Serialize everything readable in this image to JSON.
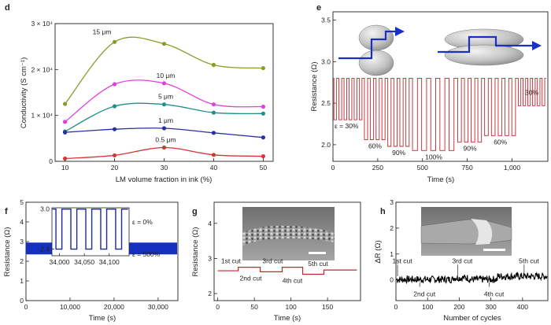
{
  "colors": {
    "axis": "#222222",
    "red_signal": "#c0272d",
    "blue_fill": "#1530c0",
    "strain_arrow": "#1a2fc8",
    "ellipsoid": "#b8b8b8",
    "sem_gray": "#8a8a8a"
  },
  "chart_data": [
    {
      "panel": "d",
      "type": "line",
      "xlabel": "LM volume fraction in ink (%)",
      "ylabel": "Conductivity (S cm⁻¹)",
      "xlim": [
        10,
        50
      ],
      "ylim": [
        0,
        30000
      ],
      "x": [
        10,
        20,
        30,
        40,
        50
      ],
      "xticks": [
        "10",
        "20",
        "30",
        "40",
        "50"
      ],
      "yticks": [
        {
          "value": 0,
          "label": "0"
        },
        {
          "value": 10000,
          "label": "1 × 10⁴"
        },
        {
          "value": 20000,
          "label": "2 × 10⁴"
        },
        {
          "value": 30000,
          "label": "3 × 10⁴"
        }
      ],
      "series": [
        {
          "name": "15 μm",
          "color": "#8c9a2a",
          "values": [
            12500,
            26000,
            25600,
            21000,
            20300
          ]
        },
        {
          "name": "10 μm",
          "color": "#e13ee0",
          "values": [
            8600,
            16800,
            17000,
            12400,
            11900
          ]
        },
        {
          "name": "5 μm",
          "color": "#1f8f8a",
          "values": [
            6500,
            12000,
            12400,
            10600,
            10400
          ]
        },
        {
          "name": "1 μm",
          "color": "#27319e",
          "values": [
            6300,
            7000,
            7200,
            6200,
            5200
          ]
        },
        {
          "name": "0.5 μm",
          "color": "#d43535",
          "values": [
            600,
            1300,
            3000,
            1400,
            1100
          ]
        }
      ]
    },
    {
      "panel": "e",
      "type": "line",
      "xlabel": "Time (s)",
      "ylabel": "Resistance (Ω)",
      "xlim": [
        0,
        1200
      ],
      "ylim": [
        1.8,
        3.6
      ],
      "xticks": [
        "0",
        "250",
        "500",
        "750",
        "1,000"
      ],
      "yticks": [
        "2.0",
        "2.5",
        "3.0",
        "3.5"
      ],
      "baseline": 2.8,
      "segments": [
        {
          "label": "ε = 30%",
          "start": 0,
          "end": 170,
          "cycles": 6,
          "low": 2.3
        },
        {
          "label": "60%",
          "start": 170,
          "end": 300,
          "cycles": 4,
          "low": 2.06
        },
        {
          "label": "90%",
          "start": 300,
          "end": 435,
          "cycles": 4,
          "low": 1.98
        },
        {
          "label": "100%",
          "start": 435,
          "end": 690,
          "cycles": 5,
          "low": 1.93
        },
        {
          "label": "90%",
          "start": 690,
          "end": 840,
          "cycles": 4,
          "low": 2.03
        },
        {
          "label": "60%",
          "start": 840,
          "end": 1030,
          "cycles": 5,
          "low": 2.11
        },
        {
          "label": "30%",
          "start": 1030,
          "end": 1190,
          "cycles": 6,
          "low": 2.47
        }
      ]
    },
    {
      "panel": "f",
      "type": "line",
      "xlabel": "Time (s)",
      "ylabel": "Resistance (Ω)",
      "xlim": [
        0,
        34500
      ],
      "ylim": [
        0,
        5
      ],
      "xticks": [
        "0",
        "10,000",
        "20,000",
        "30,000"
      ],
      "yticks": [
        "0",
        "1",
        "2",
        "3",
        "4",
        "5"
      ],
      "band": [
        2.35,
        2.95
      ],
      "inset": {
        "xlim": [
          33985,
          34140
        ],
        "ylim": [
          2.3,
          3.02
        ],
        "xticks": [
          "34,000",
          "34,050",
          "34,100"
        ],
        "yticks": [
          "2.4",
          "3.0"
        ],
        "high": 3.0,
        "low": 2.4,
        "label_high": "ε = 0%",
        "label_low": "ε = 500%"
      }
    },
    {
      "panel": "g",
      "type": "line",
      "xlabel": "Time (s)",
      "ylabel": "Resistance (Ω)",
      "xlim": [
        -5,
        195
      ],
      "ylim": [
        1.8,
        4.6
      ],
      "xticks": [
        "0",
        "50",
        "100",
        "150"
      ],
      "yticks": [
        "2",
        "3",
        "4"
      ],
      "x": [
        0,
        28,
        28,
        58,
        58,
        88,
        88,
        116,
        116,
        145,
        145,
        190
      ],
      "values": [
        2.65,
        2.65,
        2.75,
        2.75,
        2.62,
        2.62,
        2.75,
        2.75,
        2.55,
        2.55,
        2.67,
        2.67
      ],
      "annotations": [
        "1st cut",
        "2nd cut",
        "3rd cut",
        "4th cut",
        "5th cut"
      ]
    },
    {
      "panel": "h",
      "type": "line",
      "xlabel": "Number of cycles",
      "ylabel": "ΔR (Ω)",
      "xlim": [
        0,
        480
      ],
      "ylim": [
        -0.8,
        3
      ],
      "xticks": [
        "0",
        "100",
        "200",
        "300",
        "400"
      ],
      "yticks": [
        "0",
        "1",
        "2",
        "3"
      ],
      "mean": 0.02,
      "annotations": [
        "1st cut",
        "2nd cut",
        "3rd cut",
        "4th cut",
        "5th cut"
      ]
    }
  ]
}
